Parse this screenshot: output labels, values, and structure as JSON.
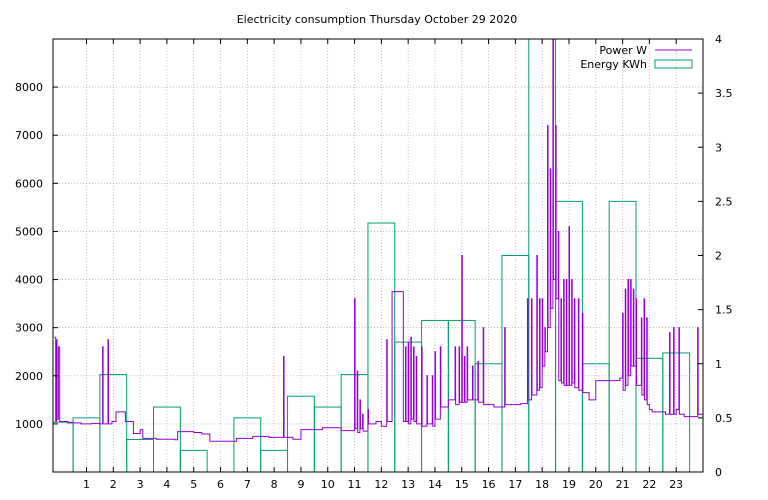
{
  "chart_data": {
    "type": "bar+line",
    "title": "Electricity consumption Thursday October 29 2020",
    "xlabel": "",
    "ylabel_left": "",
    "ylabel_right": "",
    "xlim": [
      -0.25,
      24
    ],
    "ylim_left": [
      0,
      9000
    ],
    "ylim_right": [
      0,
      4
    ],
    "x_ticks": [
      1,
      2,
      3,
      4,
      5,
      6,
      7,
      8,
      9,
      10,
      11,
      12,
      13,
      14,
      15,
      16,
      17,
      18,
      19,
      20,
      21,
      22,
      23
    ],
    "y_ticks_left": [
      1000,
      2000,
      3000,
      4000,
      5000,
      6000,
      7000,
      8000
    ],
    "y_ticks_right": [
      0,
      0.5,
      1,
      1.5,
      2,
      2.5,
      3,
      3.5,
      4
    ],
    "y_tick_labels_right": [
      "0",
      "0.5",
      "1",
      "1.5",
      "2",
      "2.5",
      "3",
      "3.5",
      "4"
    ],
    "grid": true,
    "legend_position": "top-right",
    "colors": {
      "power": "#9400d3",
      "energy": "#009e73",
      "grid": "#a0a0a0"
    },
    "series": [
      {
        "name": "Power W",
        "axis": "left",
        "style": "line",
        "points": [
          [
            -0.2,
            2800
          ],
          [
            -0.15,
            1050
          ],
          [
            -0.12,
            2750
          ],
          [
            -0.1,
            1100
          ],
          [
            -0.05,
            2600
          ],
          [
            0,
            1050
          ],
          [
            0.3,
            1020
          ],
          [
            0.8,
            1000
          ],
          [
            1.2,
            1010
          ],
          [
            1.5,
            1000
          ],
          [
            1.6,
            2600
          ],
          [
            1.62,
            1000
          ],
          [
            1.8,
            2750
          ],
          [
            1.82,
            1000
          ],
          [
            1.95,
            1050
          ],
          [
            2.1,
            1250
          ],
          [
            2.4,
            1250
          ],
          [
            2.45,
            1050
          ],
          [
            2.7,
            1050
          ],
          [
            2.75,
            800
          ],
          [
            2.9,
            800
          ],
          [
            3.0,
            880
          ],
          [
            3.1,
            700
          ],
          [
            3.4,
            700
          ],
          [
            3.6,
            680
          ],
          [
            4.0,
            680
          ],
          [
            4.3,
            670
          ],
          [
            4.4,
            840
          ],
          [
            5.0,
            820
          ],
          [
            5.3,
            790
          ],
          [
            5.5,
            790
          ],
          [
            5.6,
            640
          ],
          [
            6.0,
            640
          ],
          [
            6.5,
            640
          ],
          [
            6.6,
            700
          ],
          [
            7.0,
            700
          ],
          [
            7.2,
            740
          ],
          [
            7.5,
            740
          ],
          [
            7.8,
            720
          ],
          [
            8.3,
            720
          ],
          [
            8.35,
            2400
          ],
          [
            8.37,
            720
          ],
          [
            8.6,
            720
          ],
          [
            8.7,
            680
          ],
          [
            8.9,
            680
          ],
          [
            9.0,
            880
          ],
          [
            9.5,
            880
          ],
          [
            9.8,
            920
          ],
          [
            10.3,
            920
          ],
          [
            10.5,
            860
          ],
          [
            10.9,
            860
          ],
          [
            11.0,
            3600
          ],
          [
            11.02,
            900
          ],
          [
            11.1,
            2100
          ],
          [
            11.12,
            820
          ],
          [
            11.2,
            1500
          ],
          [
            11.22,
            900
          ],
          [
            11.3,
            1200
          ],
          [
            11.32,
            850
          ],
          [
            11.5,
            1300
          ],
          [
            11.52,
            1000
          ],
          [
            11.7,
            1000
          ],
          [
            11.8,
            1050
          ],
          [
            11.9,
            1050
          ],
          [
            12.0,
            950
          ],
          [
            12.1,
            950
          ],
          [
            12.2,
            2750
          ],
          [
            12.22,
            1050
          ],
          [
            12.3,
            1050
          ],
          [
            12.4,
            3750
          ],
          [
            12.8,
            3750
          ],
          [
            12.82,
            1050
          ],
          [
            12.9,
            2600
          ],
          [
            12.92,
            1050
          ],
          [
            13.0,
            2700
          ],
          [
            13.02,
            1000
          ],
          [
            13.1,
            2800
          ],
          [
            13.12,
            1100
          ],
          [
            13.2,
            2600
          ],
          [
            13.22,
            1050
          ],
          [
            13.3,
            2400
          ],
          [
            13.32,
            1000
          ],
          [
            13.5,
            2600
          ],
          [
            13.52,
            950
          ],
          [
            13.7,
            2000
          ],
          [
            13.72,
            1000
          ],
          [
            13.9,
            2000
          ],
          [
            13.92,
            950
          ],
          [
            14.0,
            2500
          ],
          [
            14.02,
            1100
          ],
          [
            14.2,
            2600
          ],
          [
            14.22,
            1350
          ],
          [
            14.4,
            1350
          ],
          [
            14.5,
            1500
          ],
          [
            14.7,
            1500
          ],
          [
            14.75,
            2600
          ],
          [
            14.77,
            1400
          ],
          [
            14.9,
            2600
          ],
          [
            14.92,
            1450
          ],
          [
            15.0,
            4500
          ],
          [
            15.02,
            1450
          ],
          [
            15.1,
            2400
          ],
          [
            15.12,
            1450
          ],
          [
            15.2,
            2600
          ],
          [
            15.22,
            1500
          ],
          [
            15.4,
            2200
          ],
          [
            15.42,
            1500
          ],
          [
            15.6,
            2300
          ],
          [
            15.62,
            1450
          ],
          [
            15.8,
            3000
          ],
          [
            15.82,
            1400
          ],
          [
            16.0,
            1400
          ],
          [
            16.2,
            1350
          ],
          [
            16.5,
            1350
          ],
          [
            16.6,
            3000
          ],
          [
            16.62,
            1400
          ],
          [
            16.8,
            1400
          ],
          [
            17.2,
            1420
          ],
          [
            17.4,
            1420
          ],
          [
            17.45,
            3600
          ],
          [
            17.47,
            1500
          ],
          [
            17.6,
            3600
          ],
          [
            17.62,
            1600
          ],
          [
            17.8,
            4500
          ],
          [
            17.82,
            1700
          ],
          [
            17.9,
            3600
          ],
          [
            17.92,
            1750
          ],
          [
            18.0,
            3600
          ],
          [
            18.02,
            2200
          ],
          [
            18.1,
            3000
          ],
          [
            18.12,
            2500
          ],
          [
            18.2,
            7200
          ],
          [
            18.22,
            3000
          ],
          [
            18.3,
            6300
          ],
          [
            18.32,
            3400
          ],
          [
            18.4,
            9000
          ],
          [
            18.42,
            4000
          ],
          [
            18.5,
            7200
          ],
          [
            18.52,
            3600
          ],
          [
            18.6,
            5000
          ],
          [
            18.62,
            1900
          ],
          [
            18.7,
            3600
          ],
          [
            18.72,
            1850
          ],
          [
            18.8,
            4000
          ],
          [
            18.82,
            1800
          ],
          [
            18.9,
            4000
          ],
          [
            18.92,
            1800
          ],
          [
            19.0,
            5100
          ],
          [
            19.02,
            1800
          ],
          [
            19.1,
            4000
          ],
          [
            19.12,
            1850
          ],
          [
            19.2,
            3600
          ],
          [
            19.22,
            1750
          ],
          [
            19.35,
            3600
          ],
          [
            19.37,
            1700
          ],
          [
            19.5,
            3300
          ],
          [
            19.52,
            1650
          ],
          [
            19.7,
            1650
          ],
          [
            19.75,
            1500
          ],
          [
            19.95,
            1500
          ],
          [
            20.0,
            1900
          ],
          [
            20.3,
            1900
          ],
          [
            20.5,
            1900
          ],
          [
            20.9,
            1950
          ],
          [
            21.0,
            3300
          ],
          [
            21.02,
            1700
          ],
          [
            21.1,
            3800
          ],
          [
            21.12,
            1800
          ],
          [
            21.2,
            4000
          ],
          [
            21.22,
            2000
          ],
          [
            21.3,
            4000
          ],
          [
            21.32,
            2200
          ],
          [
            21.4,
            3800
          ],
          [
            21.42,
            2200
          ],
          [
            21.5,
            3600
          ],
          [
            21.52,
            1800
          ],
          [
            21.7,
            3200
          ],
          [
            21.72,
            1600
          ],
          [
            21.8,
            3600
          ],
          [
            21.82,
            1500
          ],
          [
            21.9,
            3200
          ],
          [
            21.92,
            1400
          ],
          [
            22.0,
            1300
          ],
          [
            22.1,
            1250
          ],
          [
            22.5,
            1250
          ],
          [
            22.6,
            1200
          ],
          [
            22.7,
            1200
          ],
          [
            22.75,
            2900
          ],
          [
            22.77,
            1200
          ],
          [
            22.9,
            3000
          ],
          [
            22.92,
            1200
          ],
          [
            23.0,
            1300
          ],
          [
            23.1,
            3000
          ],
          [
            23.12,
            1200
          ],
          [
            23.3,
            1150
          ],
          [
            23.6,
            1150
          ],
          [
            23.8,
            3000
          ],
          [
            23.82,
            1200
          ],
          [
            24.0,
            1200
          ]
        ]
      },
      {
        "name": "Energy KWh",
        "axis": "right",
        "style": "boxes",
        "hours": [
          0,
          1,
          2,
          3,
          4,
          5,
          6,
          7,
          8,
          9,
          10,
          11,
          12,
          13,
          14,
          15,
          16,
          17,
          18,
          19,
          20,
          21,
          22,
          23
        ],
        "values": [
          0.46,
          0.5,
          0.9,
          0.3,
          0.6,
          0.2,
          0.0,
          0.5,
          0.2,
          0.7,
          0.6,
          0.9,
          2.3,
          1.2,
          1.4,
          1.4,
          1.0,
          2.0,
          4.0,
          2.5,
          1.0,
          2.5,
          1.05,
          1.1
        ]
      }
    ]
  }
}
